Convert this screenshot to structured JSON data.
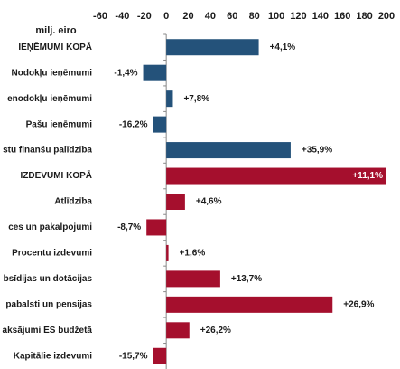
{
  "chart_data": {
    "type": "barh",
    "axis_label": "milj. eiro",
    "categories": [
      "IEŅĒMUMI KOPĀ",
      "Nodokļu ieņēmumi",
      "enodokļu ieņēmumi",
      "Pašu ieņēmumi",
      "stu finanšu palīdzība",
      "IZDEVUMI KOPĀ",
      "Atlīdzība",
      "ces un pakalpojumi",
      "Procentu izdevumi",
      "bsīdijas un dotācijas",
      "pabalsti un pensijas",
      "aksājumi ES budžetā",
      "Kapitālie izdevumi"
    ],
    "values": [
      84,
      -21,
      6,
      -12,
      113,
      200,
      17,
      -18,
      2,
      49,
      151,
      21,
      -12
    ],
    "change_labels": [
      "+4,1%",
      "-1,4%",
      "+7,8%",
      "-16,2%",
      "+35,9%",
      "+11,1%",
      "+4,6%",
      "-8,7%",
      "+1,6%",
      "+13,7%",
      "+26,9%",
      "+26,2%",
      "-15,7%"
    ],
    "colors": [
      "#24527a",
      "#24527a",
      "#24527a",
      "#24527a",
      "#24527a",
      "#a50f2d",
      "#a50f2d",
      "#a50f2d",
      "#a50f2d",
      "#a50f2d",
      "#a50f2d",
      "#a50f2d",
      "#a50f2d"
    ],
    "xlim": [
      -60,
      200
    ],
    "xticks": [
      -60,
      -40,
      -20,
      0,
      20,
      40,
      60,
      80,
      100,
      120,
      140,
      160,
      180,
      200
    ]
  }
}
